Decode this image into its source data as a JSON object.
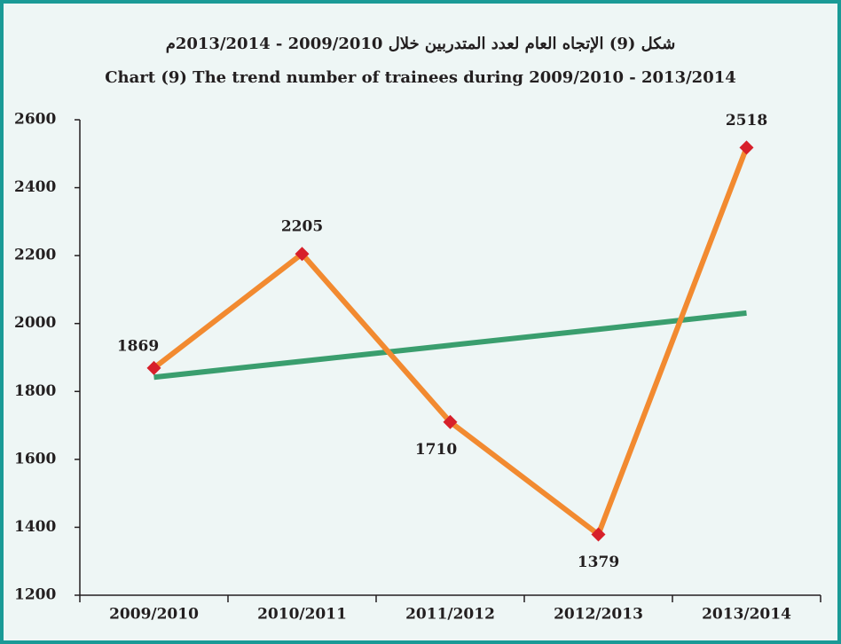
{
  "chart_data": {
    "type": "line",
    "title": "شكل (9) الإتجاه العام  لعدد المتدربين خلال 2009/2010 - 2013/2014م",
    "subtitle": "Chart (9) The trend number of trainees during  2009/2010 - 2013/2014",
    "categories": [
      "2009/2010",
      "2010/2011",
      "2011/2012",
      "2012/2013",
      "2013/2014"
    ],
    "series": [
      {
        "color": "#f28a30",
        "marker_color": "#d7202a",
        "values": [
          1869,
          2205,
          1710,
          1379,
          2518
        ]
      },
      {
        "color": "#3a9e6e",
        "values": [
          1842,
          1889,
          1936,
          1983,
          2031
        ]
      }
    ],
    "ylim": [
      1200,
      2600
    ],
    "yticks": [
      1200,
      1400,
      1600,
      1800,
      2000,
      2200,
      2400,
      2600
    ]
  }
}
